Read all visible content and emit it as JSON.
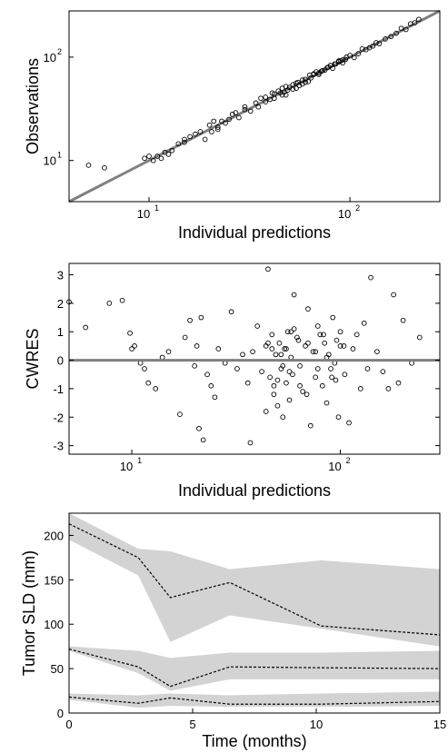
{
  "chart_data": [
    {
      "type": "scatter",
      "title": "",
      "xlabel": "Individual predictions",
      "ylabel": "Observations",
      "xscale": "log",
      "yscale": "log",
      "xlim": [
        4,
        280
      ],
      "ylim": [
        4,
        280
      ],
      "xticks": [
        {
          "base": "10",
          "exp": "1",
          "value": 10
        },
        {
          "base": "10",
          "exp": "2",
          "value": 100
        }
      ],
      "yticks": [
        {
          "base": "10",
          "exp": "1",
          "value": 10
        },
        {
          "base": "10",
          "exp": "2",
          "value": 100
        }
      ],
      "identity_line": true,
      "line_color": "#808080",
      "grid": false,
      "points_x": [
        5,
        6,
        9.5,
        10,
        10.5,
        11,
        11.5,
        12,
        12.5,
        13,
        14,
        15,
        16,
        18,
        19,
        20,
        20.5,
        21,
        22,
        23,
        24,
        25,
        27,
        28,
        30,
        32,
        34,
        36,
        38,
        40,
        41,
        42,
        44,
        45,
        46,
        47,
        48,
        49,
        50,
        52,
        54,
        55,
        56,
        58,
        60,
        62,
        64,
        66,
        68,
        70,
        72,
        75,
        78,
        80,
        82,
        85,
        88,
        90,
        92,
        95,
        100,
        105,
        110,
        115,
        120,
        125,
        130,
        135,
        140,
        150,
        160,
        170,
        180,
        190,
        200,
        210,
        220,
        35,
        38,
        42,
        46,
        52,
        58,
        63,
        70,
        77,
        84,
        92,
        22,
        26,
        30,
        15,
        17,
        48,
        54,
        60,
        66,
        73,
        80,
        88,
        96
      ],
      "points_y": [
        9,
        8.5,
        10.5,
        11,
        10,
        11,
        10.5,
        12,
        11.5,
        12.5,
        14.5,
        15,
        17,
        19,
        16,
        22,
        19,
        24,
        21,
        24,
        23,
        25,
        29,
        26,
        31,
        30,
        36,
        40,
        37,
        39,
        45,
        40,
        47,
        45,
        50,
        46,
        43,
        48,
        51,
        49,
        56,
        57,
        53,
        60,
        61,
        58,
        63,
        68,
        72,
        70,
        73,
        75,
        80,
        83,
        78,
        86,
        90,
        92,
        88,
        95,
        104,
        99,
        108,
        120,
        118,
        123,
        128,
        138,
        135,
        150,
        158,
        170,
        190,
        185,
        210,
        215,
        232,
        33,
        41,
        44,
        43,
        54,
        55,
        67,
        68,
        79,
        86,
        94,
        20,
        28,
        33,
        16,
        18,
        52,
        50,
        57,
        69,
        74,
        83,
        92,
        100
      ]
    },
    {
      "type": "scatter",
      "title": "",
      "xlabel": "Individual predictions",
      "ylabel": "CWRES",
      "xscale": "log",
      "xlim": [
        5,
        300
      ],
      "ylim": [
        -3.3,
        3.4
      ],
      "xticks": [
        {
          "base": "10",
          "exp": "1",
          "value": 10
        },
        {
          "base": "10",
          "exp": "2",
          "value": 100
        }
      ],
      "yticks": [
        3,
        2,
        1,
        0,
        -1,
        -2,
        -3
      ],
      "zero_line": true,
      "line_color": "#808080",
      "grid": false,
      "points_x": [
        5,
        6,
        7.8,
        9,
        9.8,
        10,
        10.3,
        11,
        11.5,
        12,
        13,
        14,
        15,
        17,
        18,
        19,
        20,
        20.5,
        21,
        21.5,
        22,
        23,
        24,
        25,
        26,
        28,
        30,
        32,
        34,
        36,
        37,
        38,
        40,
        42,
        44,
        45,
        46,
        47,
        48,
        49,
        50,
        51,
        52,
        53,
        54,
        55,
        56,
        57,
        58,
        59,
        60,
        62,
        64,
        66,
        68,
        70,
        72,
        74,
        76,
        78,
        80,
        82,
        84,
        86,
        88,
        90,
        92,
        94,
        96,
        98,
        100,
        105,
        110,
        115,
        120,
        125,
        130,
        135,
        140,
        150,
        160,
        170,
        180,
        190,
        200,
        220,
        240,
        45,
        50,
        55,
        60,
        48,
        52,
        57,
        63,
        69,
        76,
        83,
        91,
        100,
        44,
        47,
        53,
        58,
        64,
        70,
        78,
        86,
        95,
        104
      ],
      "points_y": [
        2.05,
        1.15,
        2.0,
        2.1,
        0.95,
        0.4,
        0.5,
        -0.1,
        -0.3,
        -0.8,
        -1.0,
        0.1,
        0.3,
        -1.9,
        0.8,
        1.4,
        -0.2,
        0.5,
        -2.4,
        1.5,
        -2.8,
        -0.5,
        -0.9,
        -1.3,
        0.4,
        -0.1,
        1.7,
        -0.3,
        0.2,
        -0.8,
        -2.9,
        0.3,
        1.2,
        -0.4,
        0.5,
        3.2,
        -0.6,
        0.9,
        -1.2,
        0.2,
        -1.6,
        0.6,
        -0.3,
        -2.0,
        0.4,
        -0.8,
        1.0,
        -1.4,
        0.1,
        -0.5,
        2.3,
        0.8,
        -0.2,
        -1.1,
        0.5,
        1.8,
        -2.3,
        0.3,
        -0.6,
        1.2,
        0.9,
        -0.9,
        0.6,
        -1.5,
        0.2,
        -0.3,
        1.5,
        -0.1,
        0.7,
        -2.0,
        1.0,
        -0.5,
        -2.2,
        0.4,
        0.9,
        -1.0,
        1.3,
        -0.3,
        2.9,
        0.3,
        -0.4,
        -1.0,
        2.3,
        -0.8,
        1.4,
        -0.1,
        0.8,
        0.6,
        -0.7,
        0.4,
        1.1,
        -0.9,
        0.2,
        -0.4,
        0.7,
        -1.2,
        0.3,
        0.9,
        -0.6,
        0.5,
        -1.8,
        0.4,
        -0.2,
        1.0,
        -0.9,
        0.6,
        -0.3,
        0.1,
        -0.7,
        0.5
      ],
      "marker_color": "#000000"
    },
    {
      "type": "area",
      "title": "",
      "xlabel": "Time (months)",
      "ylabel": "Tumor SLD (mm)",
      "xlim": [
        0,
        15
      ],
      "ylim": [
        0,
        225
      ],
      "xticks": [
        0,
        5,
        10,
        15
      ],
      "yticks": [
        0,
        50,
        100,
        150,
        200
      ],
      "band_color": "#d3d3d3",
      "grid": false,
      "series": [
        {
          "x": [
            0,
            2.8,
            4.1,
            6.5,
            10.2,
            15
          ],
          "median": [
            213,
            175,
            130,
            147,
            98,
            88
          ],
          "lower": [
            195,
            155,
            80,
            110,
            95,
            75
          ],
          "upper": [
            225,
            185,
            182,
            162,
            172,
            162
          ]
        },
        {
          "x": [
            0,
            2.8,
            4.1,
            6.5,
            10.2,
            15
          ],
          "median": [
            72,
            52,
            30,
            52,
            51,
            50
          ],
          "lower": [
            70,
            45,
            25,
            38,
            38,
            38
          ],
          "upper": [
            75,
            70,
            62,
            68,
            68,
            70
          ]
        },
        {
          "x": [
            0,
            2.8,
            4.1,
            6.5,
            10.2,
            15
          ],
          "median": [
            18,
            11,
            17,
            10,
            10,
            13
          ],
          "lower": [
            15,
            6,
            8,
            7,
            7,
            8
          ],
          "upper": [
            22,
            20,
            22,
            20,
            22,
            24
          ]
        }
      ]
    }
  ]
}
